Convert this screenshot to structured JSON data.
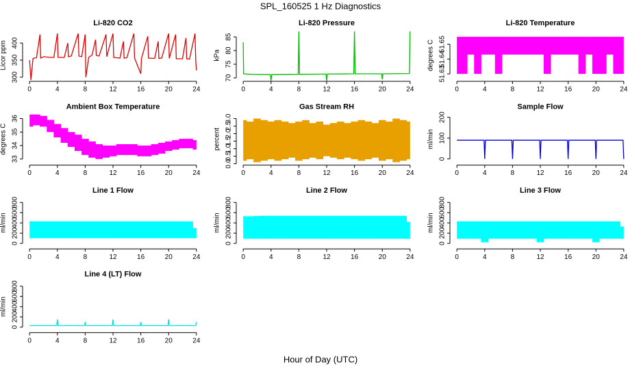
{
  "title": "SPL_160525  1 Hz Diagnostics",
  "xlabel": "Hour of Day (UTC)",
  "chart_data": [
    {
      "type": "line",
      "title": "Li-820 CO2",
      "ylabel": "Licor ppm",
      "color": "#dd0000",
      "x": [
        0,
        0.2,
        0.5,
        1,
        1.5,
        1.6,
        2,
        3,
        3.5,
        4,
        4.1,
        5,
        5.5,
        5.6,
        6,
        7,
        7.1,
        7.5,
        8,
        8.1,
        8.5,
        9,
        9.5,
        9.6,
        10,
        11,
        11.1,
        12,
        12.1,
        13,
        13.5,
        13.6,
        14,
        15,
        15.1,
        16,
        16.1,
        17,
        17.1,
        18,
        18.5,
        18.6,
        19,
        20,
        20.1,
        21,
        21.1,
        22,
        22.5,
        22.6,
        23,
        23.8,
        23.9,
        24
      ],
      "values": [
        350,
        292,
        355,
        357,
        425,
        356,
        360,
        358,
        358,
        428,
        358,
        358,
        400,
        360,
        362,
        428,
        362,
        360,
        425,
        300,
        358,
        365,
        410,
        364,
        362,
        425,
        360,
        428,
        358,
        356,
        405,
        356,
        357,
        428,
        356,
        310,
        355,
        420,
        356,
        355,
        405,
        355,
        356,
        428,
        355,
        425,
        354,
        354,
        415,
        354,
        353,
        428,
        350,
        320
      ],
      "xlim": [
        -1,
        25
      ],
      "xticks": [
        0,
        4,
        8,
        12,
        16,
        20,
        24
      ],
      "ylim": [
        288,
        440
      ],
      "yticks": [
        300,
        350,
        400
      ]
    },
    {
      "type": "line",
      "title": "Li-820 Pressure",
      "ylabel": "kPa",
      "color": "#00bb00",
      "x": [
        0,
        0.05,
        1,
        3.9,
        4,
        4.1,
        7.9,
        8,
        8.1,
        11.9,
        12,
        12.1,
        15.9,
        16,
        16.1,
        19.9,
        20,
        20.1,
        23.9,
        24
      ],
      "values": [
        83,
        71.5,
        71.3,
        71.2,
        69,
        71.2,
        71.3,
        87,
        71.3,
        71.4,
        69,
        71.4,
        71.5,
        87,
        71.5,
        71.5,
        69.5,
        71.5,
        71.6,
        87
      ],
      "xlim": [
        -1,
        25
      ],
      "xticks": [
        0,
        4,
        8,
        12,
        16,
        20,
        24
      ],
      "ylim": [
        68.75,
        87.75
      ],
      "yticks": [
        70,
        75,
        80,
        85
      ]
    },
    {
      "type": "range",
      "title": "Li-820 Temperature",
      "ylabel": "degrees C",
      "color": "#ff00ff",
      "x": [
        0,
        1,
        2,
        3,
        4,
        5,
        6,
        7,
        8,
        9,
        10,
        11,
        12,
        13,
        14,
        15,
        16,
        17,
        18,
        19,
        20,
        21,
        22,
        23,
        24
      ],
      "upper": [
        51.655,
        51.655,
        51.655,
        51.655,
        51.655,
        51.655,
        51.655,
        51.655,
        51.655,
        51.655,
        51.655,
        51.655,
        51.655,
        51.655,
        51.655,
        51.655,
        51.655,
        51.655,
        51.655,
        51.655,
        51.655,
        51.655,
        51.655,
        51.655,
        51.655
      ],
      "lower": [
        51.63,
        51.63,
        51.643,
        51.63,
        51.643,
        51.643,
        51.63,
        51.643,
        51.643,
        51.643,
        51.643,
        51.643,
        51.643,
        51.63,
        51.643,
        51.643,
        51.643,
        51.643,
        51.63,
        51.643,
        51.63,
        51.63,
        51.643,
        51.63,
        51.63
      ],
      "xlim": [
        -1,
        25
      ],
      "xticks": [
        0,
        4,
        8,
        12,
        16,
        20,
        24
      ],
      "ylim": [
        51.625,
        51.66
      ],
      "yticks": [
        51.63,
        51.64,
        51.65
      ]
    },
    {
      "type": "range",
      "title": "Ambient Box Temperature",
      "ylabel": "degrees C",
      "color": "#ff00ff",
      "x": [
        0,
        1,
        2,
        3,
        4,
        5,
        6,
        7,
        8,
        9,
        10,
        11,
        12,
        13,
        14,
        15,
        16,
        17,
        18,
        19,
        20,
        21,
        22,
        23,
        24
      ],
      "upper": [
        36.3,
        36.3,
        36.2,
        35.9,
        35.6,
        35.3,
        35,
        34.8,
        34.5,
        34.3,
        34.1,
        34,
        34,
        34.1,
        34.1,
        34.1,
        34,
        34,
        34.1,
        34.2,
        34.3,
        34.4,
        34.5,
        34.5,
        34.4
      ],
      "lower": [
        35.4,
        35.5,
        35.4,
        35,
        34.6,
        34.2,
        33.9,
        33.6,
        33.3,
        33.1,
        33,
        33.1,
        33.2,
        33.3,
        33.3,
        33.3,
        33.2,
        33.2,
        33.3,
        33.4,
        33.6,
        33.7,
        33.8,
        33.8,
        33.7
      ],
      "xlim": [
        -1,
        25
      ],
      "xticks": [
        0,
        4,
        8,
        12,
        16,
        20,
        24
      ],
      "ylim": [
        32.55,
        36.4
      ],
      "yticks": [
        33,
        34,
        35,
        36
      ]
    },
    {
      "type": "range",
      "title": "Gas Stream RH",
      "ylabel": "percent",
      "color": "#e8a000",
      "x": [
        0,
        1,
        2,
        3,
        4,
        5,
        6,
        7,
        8,
        9,
        10,
        11,
        12,
        13,
        14,
        15,
        16,
        17,
        18,
        19,
        20,
        21,
        22,
        23,
        24
      ],
      "upper": [
        2.9,
        2.8,
        3.0,
        2.9,
        2.8,
        2.9,
        2.8,
        2.7,
        2.8,
        2.9,
        2.7,
        2.8,
        2.6,
        2.7,
        2.8,
        2.7,
        2.8,
        2.9,
        2.8,
        2.7,
        2.9,
        2.8,
        3.0,
        2.9,
        2.8
      ],
      "lower": [
        0.2,
        0.3,
        0.1,
        0.2,
        0.3,
        0.2,
        0.3,
        0.4,
        0.2,
        0.3,
        0.4,
        0.3,
        0.5,
        0.4,
        0.3,
        0.4,
        0.3,
        0.2,
        0.3,
        0.4,
        0.2,
        0.3,
        0.1,
        0.2,
        0.3
      ],
      "xlim": [
        -1,
        25
      ],
      "xticks": [
        0,
        4,
        8,
        12,
        16,
        20,
        24
      ],
      "ylim": [
        -0.09,
        3.36
      ],
      "yticks": [
        {
          "value": 0,
          "label": "0.0"
        },
        0.5,
        {
          "value": 1,
          "label": "1.0"
        },
        1.5,
        {
          "value": 2,
          "label": "2.0"
        },
        2.5,
        {
          "value": 3,
          "label": "3.0"
        }
      ]
    },
    {
      "type": "line",
      "title": "Sample Flow",
      "ylabel": "ml/min",
      "color": "#0000dd",
      "x": [
        0,
        3.9,
        4,
        4.1,
        7.9,
        8,
        8.1,
        11.9,
        12,
        12.1,
        15.9,
        16,
        16.1,
        19.9,
        20,
        20.1,
        23.9,
        24
      ],
      "values": [
        90,
        90,
        0,
        90,
        90,
        0,
        90,
        90,
        0,
        90,
        90,
        0,
        90,
        90,
        0,
        90,
        90,
        0
      ],
      "xlim": [
        -1,
        25
      ],
      "xticks": [
        0,
        4,
        8,
        12,
        16,
        20,
        24
      ],
      "ylim": [
        -29.5,
        219.7
      ],
      "yticks": [
        0,
        100,
        200
      ]
    },
    {
      "type": "range",
      "title": "Line 1 Flow",
      "ylabel": "ml/min",
      "color": "#00ffff",
      "x": [
        0,
        1,
        2,
        3,
        4,
        5,
        6,
        7,
        8,
        9,
        10,
        11,
        12,
        13,
        14,
        15,
        16,
        17,
        18,
        19,
        20,
        21,
        22,
        23,
        24
      ],
      "upper": [
        430,
        430,
        430,
        430,
        430,
        430,
        430,
        430,
        430,
        430,
        430,
        430,
        430,
        430,
        430,
        430,
        430,
        430,
        430,
        430,
        430,
        430,
        430,
        430,
        300
      ],
      "lower": [
        100,
        100,
        100,
        100,
        100,
        100,
        100,
        100,
        100,
        100,
        100,
        100,
        100,
        100,
        100,
        100,
        100,
        100,
        100,
        100,
        100,
        100,
        100,
        100,
        100
      ],
      "xlim": [
        -1,
        25
      ],
      "xticks": [
        0,
        4,
        8,
        12,
        16,
        20,
        24
      ],
      "ylim": [
        -107,
        907
      ],
      "yticks": [
        0,
        200,
        400,
        600,
        800
      ]
    },
    {
      "type": "range",
      "title": "Line 2 Flow",
      "ylabel": "ml/min",
      "color": "#00ffff",
      "x": [
        0,
        1,
        2,
        3,
        4,
        5,
        6,
        7,
        8,
        9,
        10,
        11,
        12,
        13,
        14,
        15,
        16,
        17,
        18,
        19,
        20,
        21,
        22,
        23,
        24
      ],
      "upper": [
        530,
        530,
        535,
        540,
        540,
        540,
        540,
        540,
        540,
        540,
        540,
        540,
        540,
        540,
        540,
        540,
        540,
        540,
        540,
        540,
        540,
        540,
        540,
        540,
        420
      ],
      "lower": [
        90,
        90,
        90,
        90,
        90,
        90,
        90,
        90,
        90,
        90,
        90,
        90,
        90,
        90,
        90,
        90,
        90,
        90,
        90,
        90,
        90,
        90,
        90,
        90,
        90
      ],
      "xlim": [
        -1,
        25
      ],
      "xticks": [
        0,
        4,
        8,
        12,
        16,
        20,
        24
      ],
      "ylim": [
        -107,
        907
      ],
      "yticks": [
        0,
        200,
        400,
        600,
        800
      ]
    },
    {
      "type": "range",
      "title": "Line 3 Flow",
      "ylabel": "ml/min",
      "color": "#00ffff",
      "x": [
        0,
        1,
        2,
        3,
        4,
        5,
        6,
        7,
        8,
        9,
        10,
        11,
        12,
        13,
        14,
        15,
        16,
        17,
        18,
        19,
        20,
        21,
        22,
        23,
        24
      ],
      "upper": [
        430,
        430,
        430,
        430,
        430,
        430,
        430,
        430,
        430,
        430,
        430,
        430,
        430,
        430,
        430,
        430,
        430,
        430,
        430,
        430,
        430,
        430,
        430,
        430,
        330
      ],
      "lower": [
        90,
        90,
        90,
        90,
        20,
        90,
        90,
        90,
        90,
        90,
        90,
        90,
        20,
        90,
        90,
        90,
        90,
        90,
        90,
        90,
        20,
        90,
        90,
        90,
        90
      ],
      "xlim": [
        -1,
        25
      ],
      "xticks": [
        0,
        4,
        8,
        12,
        16,
        20,
        24
      ],
      "ylim": [
        -107,
        907
      ],
      "yticks": [
        0,
        200,
        400,
        600,
        800
      ]
    },
    {
      "type": "line",
      "title": "Line 4 (LT) Flow",
      "ylabel": "ml/min",
      "color": "#00e0e0",
      "x": [
        0,
        3.9,
        4,
        4.1,
        7.9,
        8,
        8.1,
        11.9,
        12,
        12.1,
        15.9,
        16,
        16.1,
        19.9,
        20,
        20.1,
        23.9,
        24
      ],
      "values": [
        30,
        30,
        150,
        30,
        30,
        100,
        30,
        30,
        150,
        30,
        30,
        100,
        30,
        30,
        150,
        30,
        30,
        100
      ],
      "xlim": [
        -1,
        25
      ],
      "xticks": [
        0,
        4,
        8,
        12,
        16,
        20,
        24
      ],
      "ylim": [
        -107,
        907
      ],
      "yticks": [
        0,
        200,
        400,
        600,
        800
      ]
    }
  ]
}
